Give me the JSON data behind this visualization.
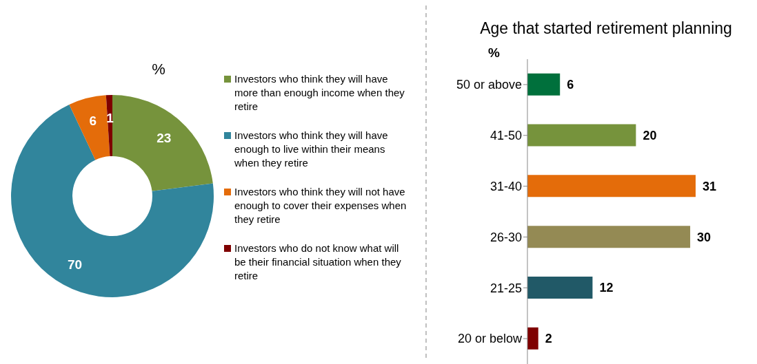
{
  "chart_data": [
    {
      "type": "donut",
      "title": "%",
      "categories": [
        "Investors who think they will have more than enough income when they retire",
        "Investors who think they will have enough to live within their means when they retire",
        "Investors who think they will not have enough to cover their expenses when they retire",
        "Investors who do not know what will be their financial situation when they retire"
      ],
      "values": [
        23,
        70,
        6,
        1
      ],
      "colors": [
        "#76933c",
        "#31859c",
        "#e46c0a",
        "#7f0000"
      ],
      "data_labels": true,
      "legend": "right"
    },
    {
      "type": "bar",
      "orientation": "horizontal",
      "title": "Age that started retirement planning",
      "xlabel": "%",
      "categories": [
        "50 or above",
        "41-50",
        "31-40",
        "26-30",
        "21-25",
        "20 or below"
      ],
      "values": [
        6,
        20,
        31,
        30,
        12,
        2
      ],
      "colors": [
        "#00703c",
        "#76933c",
        "#e46c0a",
        "#948a54",
        "#215967",
        "#7f0000"
      ],
      "data_labels": true
    }
  ]
}
